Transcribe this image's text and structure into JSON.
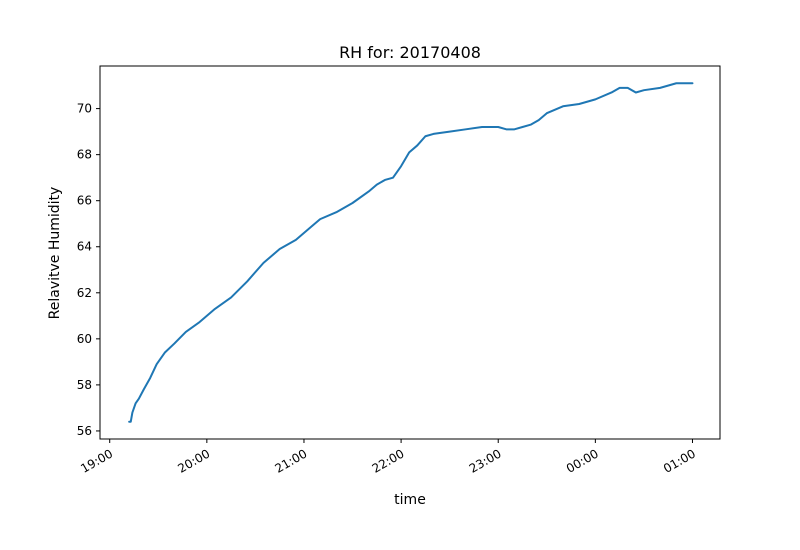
{
  "chart_data": {
    "type": "line",
    "title": "RH for: 20170408",
    "xlabel": "time",
    "ylabel": "Relavitve Humidity",
    "x_ticks": [
      "19:00",
      "20:00",
      "21:00",
      "22:00",
      "23:00",
      "00:00",
      "01:00"
    ],
    "y_ticks": [
      "56",
      "58",
      "60",
      "62",
      "64",
      "66",
      "68",
      "70"
    ],
    "xlim": [
      "2017-04-08T18:54",
      "2017-04-09T01:17"
    ],
    "ylim": [
      55.65,
      71.85
    ],
    "grid": false,
    "line_color": "#1f77b4",
    "series": [
      {
        "x": [
          "2017-04-08T19:12",
          "2017-04-08T19:13",
          "2017-04-08T19:14",
          "2017-04-08T19:16",
          "2017-04-08T19:18",
          "2017-04-08T19:21",
          "2017-04-08T19:25",
          "2017-04-08T19:29",
          "2017-04-08T19:34",
          "2017-04-08T19:40",
          "2017-04-08T19:47",
          "2017-04-08T19:55",
          "2017-04-08T20:05",
          "2017-04-08T20:15",
          "2017-04-08T20:25",
          "2017-04-08T20:35",
          "2017-04-08T20:45",
          "2017-04-08T20:55",
          "2017-04-08T21:05",
          "2017-04-08T21:10",
          "2017-04-08T21:20",
          "2017-04-08T21:30",
          "2017-04-08T21:40",
          "2017-04-08T21:45",
          "2017-04-08T21:50",
          "2017-04-08T21:55",
          "2017-04-08T22:00",
          "2017-04-08T22:05",
          "2017-04-08T22:10",
          "2017-04-08T22:15",
          "2017-04-08T22:20",
          "2017-04-08T22:30",
          "2017-04-08T22:40",
          "2017-04-08T22:50",
          "2017-04-08T23:00",
          "2017-04-08T23:05",
          "2017-04-08T23:10",
          "2017-04-08T23:15",
          "2017-04-08T23:20",
          "2017-04-08T23:25",
          "2017-04-08T23:30",
          "2017-04-08T23:40",
          "2017-04-08T23:50",
          "2017-04-09T00:00",
          "2017-04-09T00:10",
          "2017-04-09T00:15",
          "2017-04-09T00:20",
          "2017-04-09T00:25",
          "2017-04-09T00:30",
          "2017-04-09T00:40",
          "2017-04-09T00:50",
          "2017-04-09T01:00"
        ],
        "y": [
          56.4,
          56.4,
          56.8,
          57.2,
          57.4,
          57.8,
          58.3,
          58.9,
          59.4,
          59.8,
          60.3,
          60.7,
          61.3,
          61.8,
          62.5,
          63.3,
          63.9,
          64.3,
          64.9,
          65.2,
          65.5,
          65.9,
          66.4,
          66.7,
          66.9,
          67.0,
          67.5,
          68.1,
          68.4,
          68.8,
          68.9,
          69.0,
          69.1,
          69.2,
          69.2,
          69.1,
          69.1,
          69.2,
          69.3,
          69.5,
          69.8,
          70.1,
          70.2,
          70.4,
          70.7,
          70.9,
          70.9,
          70.7,
          70.8,
          70.9,
          71.1,
          71.1
        ]
      }
    ]
  }
}
